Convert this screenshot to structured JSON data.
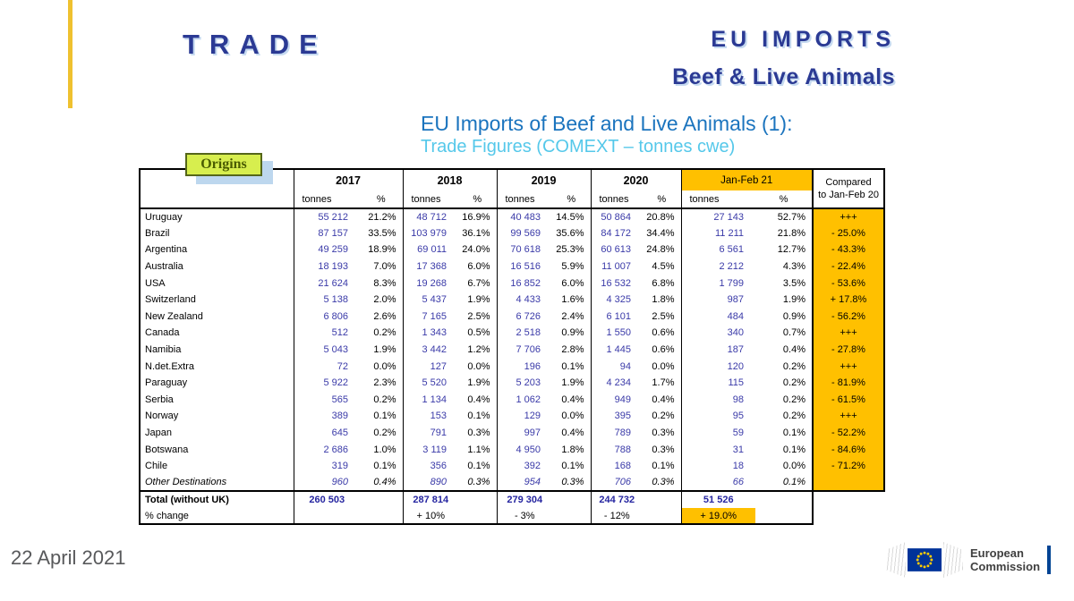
{
  "masthead": {
    "trade": "TRADE",
    "eu_imports": "EU IMPORTS",
    "subtitle": "Beef & Live Animals"
  },
  "title": {
    "line1": "EU Imports of Beef and Live Animals (1):",
    "line2": "Trade Figures (COMEXT – tonnes cwe)"
  },
  "table": {
    "origins_label": "Origins",
    "header": {
      "years": [
        "2017",
        "2018",
        "2019",
        "2020"
      ],
      "jan_feb": "Jan-Feb 21",
      "tonnes": "tonnes",
      "pct": "%",
      "compared_line1": "Compared",
      "compared_line2": "to Jan-Feb 20"
    },
    "rows": [
      {
        "origin": "Uruguay",
        "cells": [
          "55 212",
          "21.2%",
          "48 712",
          "16.9%",
          "40 483",
          "14.5%",
          "50 864",
          "20.8%",
          "27 143",
          "52.7%"
        ],
        "compared": "+++"
      },
      {
        "origin": "Brazil",
        "cells": [
          "87 157",
          "33.5%",
          "103 979",
          "36.1%",
          "99 569",
          "35.6%",
          "84 172",
          "34.4%",
          "11 211",
          "21.8%"
        ],
        "compared": "- 25.0%"
      },
      {
        "origin": "Argentina",
        "cells": [
          "49 259",
          "18.9%",
          "69 011",
          "24.0%",
          "70 618",
          "25.3%",
          "60 613",
          "24.8%",
          "6 561",
          "12.7%"
        ],
        "compared": "- 43.3%"
      },
      {
        "origin": "Australia",
        "cells": [
          "18 193",
          "7.0%",
          "17 368",
          "6.0%",
          "16 516",
          "5.9%",
          "11 007",
          "4.5%",
          "2 212",
          "4.3%"
        ],
        "compared": "- 22.4%"
      },
      {
        "origin": "USA",
        "cells": [
          "21 624",
          "8.3%",
          "19 268",
          "6.7%",
          "16 852",
          "6.0%",
          "16 532",
          "6.8%",
          "1 799",
          "3.5%"
        ],
        "compared": "- 53.6%"
      },
      {
        "origin": "Switzerland",
        "cells": [
          "5 138",
          "2.0%",
          "5 437",
          "1.9%",
          "4 433",
          "1.6%",
          "4 325",
          "1.8%",
          "987",
          "1.9%"
        ],
        "compared": "+ 17.8%"
      },
      {
        "origin": "New Zealand",
        "cells": [
          "6 806",
          "2.6%",
          "7 165",
          "2.5%",
          "6 726",
          "2.4%",
          "6 101",
          "2.5%",
          "484",
          "0.9%"
        ],
        "compared": "- 56.2%"
      },
      {
        "origin": "Canada",
        "cells": [
          "512",
          "0.2%",
          "1 343",
          "0.5%",
          "2 518",
          "0.9%",
          "1 550",
          "0.6%",
          "340",
          "0.7%"
        ],
        "compared": "+++"
      },
      {
        "origin": "Namibia",
        "cells": [
          "5 043",
          "1.9%",
          "3 442",
          "1.2%",
          "7 706",
          "2.8%",
          "1 445",
          "0.6%",
          "187",
          "0.4%"
        ],
        "compared": "- 27.8%"
      },
      {
        "origin": "N.det.Extra",
        "cells": [
          "72",
          "0.0%",
          "127",
          "0.0%",
          "196",
          "0.1%",
          "94",
          "0.0%",
          "120",
          "0.2%"
        ],
        "compared": "+++"
      },
      {
        "origin": "Paraguay",
        "cells": [
          "5 922",
          "2.3%",
          "5 520",
          "1.9%",
          "5 203",
          "1.9%",
          "4 234",
          "1.7%",
          "115",
          "0.2%"
        ],
        "compared": "- 81.9%"
      },
      {
        "origin": "Serbia",
        "cells": [
          "565",
          "0.2%",
          "1 134",
          "0.4%",
          "1 062",
          "0.4%",
          "949",
          "0.4%",
          "98",
          "0.2%"
        ],
        "compared": "- 61.5%"
      },
      {
        "origin": "Norway",
        "cells": [
          "389",
          "0.1%",
          "153",
          "0.1%",
          "129",
          "0.0%",
          "395",
          "0.2%",
          "95",
          "0.2%"
        ],
        "compared": "+++"
      },
      {
        "origin": "Japan",
        "cells": [
          "645",
          "0.2%",
          "791",
          "0.3%",
          "997",
          "0.4%",
          "789",
          "0.3%",
          "59",
          "0.1%"
        ],
        "compared": "- 52.2%"
      },
      {
        "origin": "Botswana",
        "cells": [
          "2 686",
          "1.0%",
          "3 119",
          "1.1%",
          "4 950",
          "1.8%",
          "788",
          "0.3%",
          "31",
          "0.1%"
        ],
        "compared": "- 84.6%"
      },
      {
        "origin": "Chile",
        "cells": [
          "319",
          "0.1%",
          "356",
          "0.1%",
          "392",
          "0.1%",
          "168",
          "0.1%",
          "18",
          "0.0%"
        ],
        "compared": "- 71.2%"
      },
      {
        "origin": "Other Destinations",
        "cells": [
          "960",
          "0.4%",
          "890",
          "0.3%",
          "954",
          "0.3%",
          "706",
          "0.3%",
          "66",
          "0.1%"
        ],
        "compared": "",
        "italic": true
      }
    ],
    "total_row": {
      "label": "Total (without UK)",
      "values": [
        "260 503",
        "287 814",
        "279 304",
        "244 732",
        "51 526"
      ]
    },
    "pct_change_row": {
      "label": "% change",
      "values": [
        "",
        "+ 10%",
        "- 3%",
        "- 12%",
        "+ 19.0%"
      ]
    }
  },
  "footer": {
    "date": "22 April 2021",
    "logo_line1": "European",
    "logo_line2": "Commission"
  },
  "colors": {
    "amber_highlight": "#FFC000",
    "navy_heading": "#2B3A94",
    "title_blue": "#1B74BE",
    "subtitle_cyan": "#55C8EA",
    "number_blue": "#3A3AA8",
    "total_blue": "#2525A0",
    "accent_gold": "#EFC12F",
    "origins_green": "#D7EE4E",
    "eu_flag_blue": "#003399",
    "eu_star_gold": "#FFCC00"
  }
}
